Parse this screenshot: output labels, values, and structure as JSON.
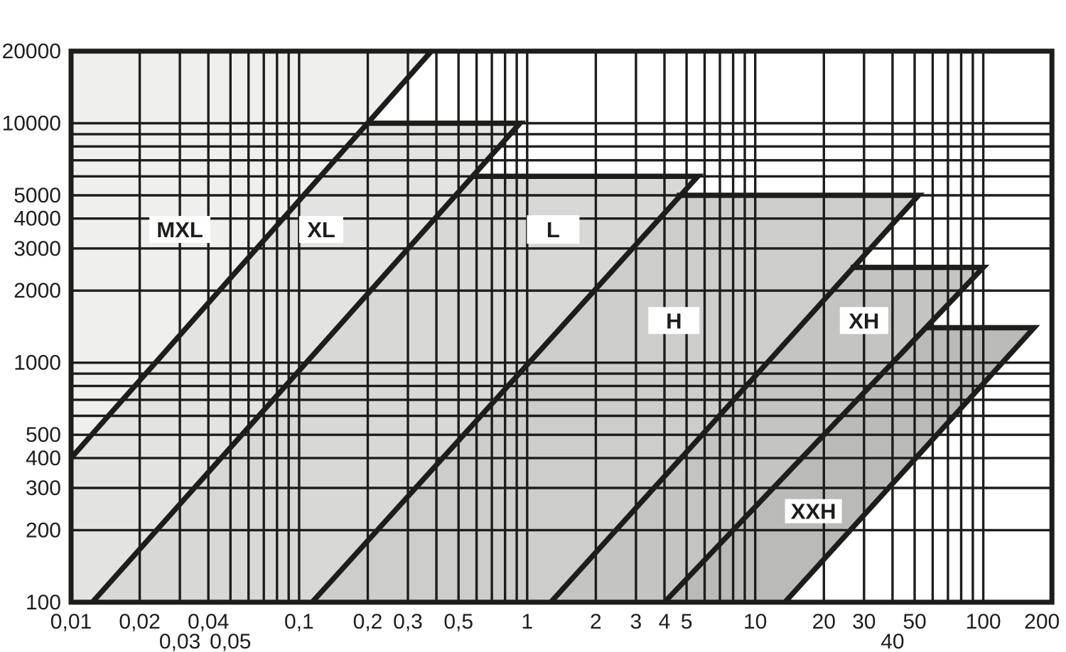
{
  "chart_data": {
    "type": "area",
    "title": "",
    "description": "Timing belt pitch selection chart: speed (rpm) vs power, log-log, regions MXL/XL/L/H/XH/XXH",
    "x_axis": {
      "scale": "log",
      "min": 0.01,
      "max": 200
    },
    "y_axis": {
      "scale": "log",
      "min": 100,
      "max": 20000
    },
    "grid": true,
    "legend_position": "none",
    "x_gridlines": [
      0.01,
      0.02,
      0.03,
      0.04,
      0.05,
      0.06,
      0.07,
      0.08,
      0.09,
      0.1,
      0.2,
      0.3,
      0.4,
      0.5,
      0.6,
      0.7,
      0.8,
      0.9,
      1,
      2,
      3,
      4,
      5,
      6,
      7,
      8,
      9,
      10,
      20,
      30,
      40,
      50,
      60,
      70,
      80,
      90,
      100,
      200
    ],
    "y_gridlines": [
      100,
      200,
      300,
      400,
      500,
      600,
      700,
      800,
      900,
      1000,
      2000,
      3000,
      4000,
      5000,
      6000,
      7000,
      8000,
      9000,
      10000,
      20000
    ],
    "x_ticks": [
      {
        "v": 0.01,
        "label": "0,01",
        "row": 1
      },
      {
        "v": 0.02,
        "label": "0,02",
        "row": 1
      },
      {
        "v": 0.04,
        "label": "0,04",
        "row": 1
      },
      {
        "v": 0.1,
        "label": "0,1",
        "row": 1
      },
      {
        "v": 0.2,
        "label": "0,2",
        "row": 1
      },
      {
        "v": 0.3,
        "label": "0,3",
        "row": 1
      },
      {
        "v": 0.5,
        "label": "0,5",
        "row": 1
      },
      {
        "v": 1,
        "label": "1",
        "row": 1
      },
      {
        "v": 2,
        "label": "2",
        "row": 1
      },
      {
        "v": 3,
        "label": "3",
        "row": 1
      },
      {
        "v": 4,
        "label": "4",
        "row": 1
      },
      {
        "v": 5,
        "label": "5",
        "row": 1
      },
      {
        "v": 10,
        "label": "10",
        "row": 1
      },
      {
        "v": 20,
        "label": "20",
        "row": 1
      },
      {
        "v": 30,
        "label": "30",
        "row": 1
      },
      {
        "v": 50,
        "label": "50",
        "row": 1
      },
      {
        "v": 100,
        "label": "100",
        "row": 1
      },
      {
        "v": 200,
        "label": "200",
        "row": 1,
        "dx": -14
      },
      {
        "v": 0.03,
        "label": "0,03",
        "row": 2
      },
      {
        "v": 0.05,
        "label": "0,05",
        "row": 2
      },
      {
        "v": 40,
        "label": "40",
        "row": 2
      }
    ],
    "y_ticks": [
      {
        "v": 20000,
        "label": "20000"
      },
      {
        "v": 10000,
        "label": "10000"
      },
      {
        "v": 5000,
        "label": "5000"
      },
      {
        "v": 4000,
        "label": "4000"
      },
      {
        "v": 3000,
        "label": "3000"
      },
      {
        "v": 2000,
        "label": "2000"
      },
      {
        "v": 1000,
        "label": "1000"
      },
      {
        "v": 500,
        "label": "500"
      },
      {
        "v": 400,
        "label": "400"
      },
      {
        "v": 300,
        "label": "300"
      },
      {
        "v": 200,
        "label": "200"
      },
      {
        "v": 100,
        "label": "100"
      }
    ],
    "regions": [
      {
        "name": "MXL",
        "label": "MXL",
        "fill": "#efefed",
        "max_speed": 20000,
        "vertices": [
          [
            0.01,
            20000
          ],
          [
            0.38,
            20000
          ],
          [
            0.01,
            400
          ]
        ],
        "boundary": [
          [
            0.38,
            20000
          ],
          [
            0.01,
            400
          ]
        ],
        "label_pos": [
          0.03,
          3600
        ],
        "label_box": [
          86,
          38
        ]
      },
      {
        "name": "XL",
        "label": "XL",
        "fill": "#e3e3e1",
        "max_speed": 10000,
        "vertices": [
          [
            0.2,
            10000
          ],
          [
            0.93,
            10000
          ],
          [
            0.0124,
            100
          ],
          [
            0.01,
            100
          ],
          [
            0.01,
            400
          ]
        ],
        "boundary": [
          [
            0.2,
            10000
          ],
          [
            0.93,
            10000
          ],
          [
            0.0124,
            100
          ]
        ],
        "label_pos": [
          0.125,
          3600
        ],
        "label_box": [
          62,
          38
        ]
      },
      {
        "name": "L",
        "label": "L",
        "fill": "#d8d8d6",
        "max_speed": 6000,
        "vertices": [
          [
            0.573,
            6000
          ],
          [
            5.6,
            6000
          ],
          [
            0.114,
            100
          ],
          [
            0.0124,
            100
          ]
        ],
        "boundary": [
          [
            0.573,
            6000
          ],
          [
            5.6,
            6000
          ],
          [
            0.114,
            100
          ]
        ],
        "label_pos": [
          1.3,
          3600
        ],
        "label_box": [
          74,
          40
        ]
      },
      {
        "name": "H",
        "label": "H",
        "fill": "#cdcdcb",
        "max_speed": 5000,
        "vertices": [
          [
            4.53,
            5000
          ],
          [
            52,
            5000
          ],
          [
            1.27,
            100
          ],
          [
            0.114,
            100
          ]
        ],
        "boundary": [
          [
            4.53,
            5000
          ],
          [
            52,
            5000
          ],
          [
            1.27,
            100
          ]
        ],
        "label_pos": [
          4.4,
          1500
        ],
        "label_box": [
          72,
          38
        ]
      },
      {
        "name": "XH",
        "label": "XH",
        "fill": "#c4c4c2",
        "max_speed": 2500,
        "vertices": [
          [
            26.2,
            2500
          ],
          [
            100,
            2500
          ],
          [
            4,
            100
          ],
          [
            1.27,
            100
          ]
        ],
        "boundary": [
          [
            26.2,
            2500
          ],
          [
            100,
            2500
          ],
          [
            4,
            100
          ]
        ],
        "label_pos": [
          30,
          1500
        ],
        "label_box": [
          68,
          38
        ]
      },
      {
        "name": "XXH",
        "label": "XXH",
        "fill": "#babab8",
        "max_speed": 1400,
        "vertices": [
          [
            56,
            1400
          ],
          [
            167,
            1400
          ],
          [
            13.5,
            100
          ],
          [
            4,
            100
          ]
        ],
        "boundary": [
          [
            56,
            1400
          ],
          [
            167,
            1400
          ],
          [
            13.5,
            100
          ]
        ],
        "label_pos": [
          18,
          240
        ],
        "label_box": [
          80,
          34
        ]
      }
    ],
    "colors": {
      "line": "#1d1d1b",
      "background": "#ffffff",
      "label_box_bg": "#ffffff",
      "text": "#1d1d1b"
    }
  }
}
